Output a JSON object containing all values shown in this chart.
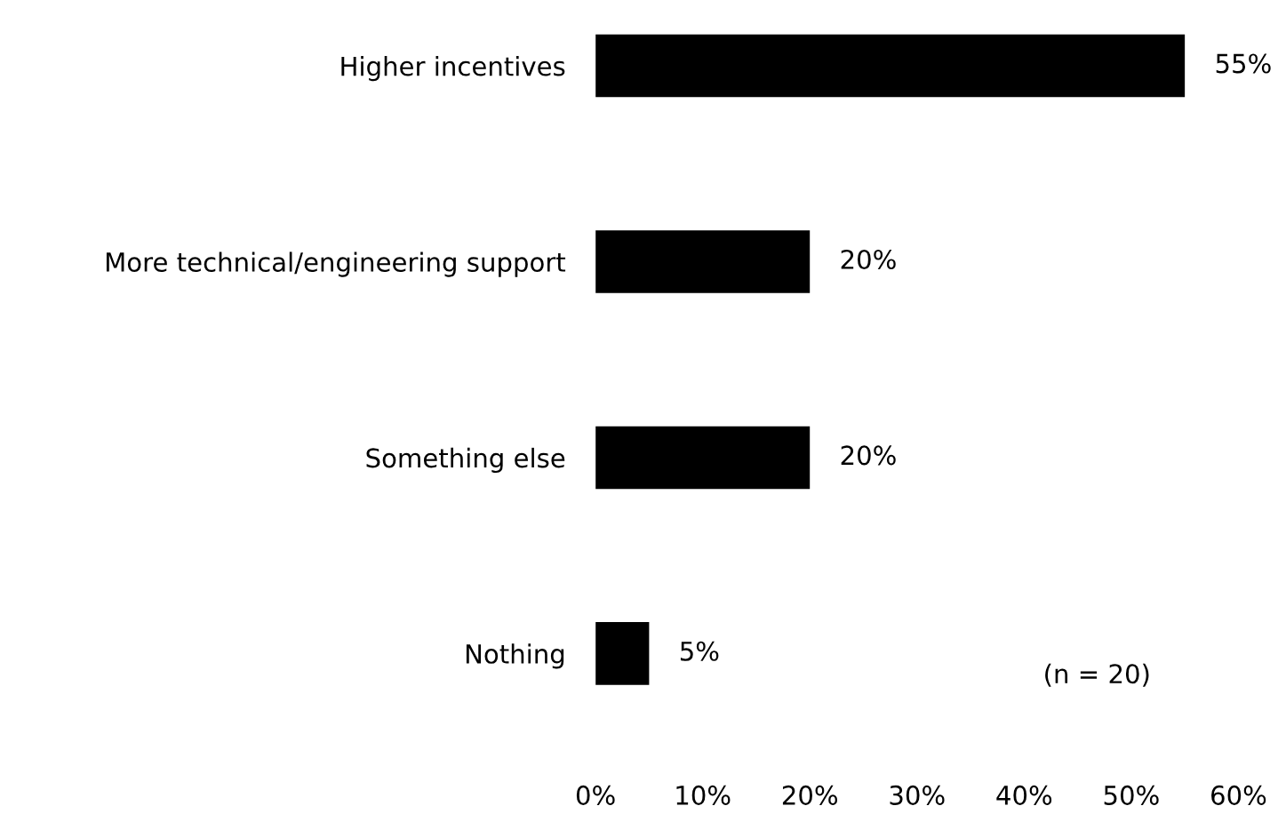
{
  "chart_data": {
    "type": "bar",
    "orientation": "horizontal",
    "categories": [
      "Higher incentives",
      "More technical/engineering support",
      "Something else",
      "Nothing"
    ],
    "values": [
      55,
      20,
      20,
      5
    ],
    "color": "#000000",
    "value_labels": [
      "55%",
      "20%",
      "20%",
      "5%"
    ],
    "xlim": [
      0,
      60
    ],
    "xticks": [
      {
        "value": 0,
        "label": "0%"
      },
      {
        "value": 10,
        "label": "10%"
      },
      {
        "value": 20,
        "label": "20%"
      },
      {
        "value": 30,
        "label": "30%"
      },
      {
        "value": 40,
        "label": "40%"
      },
      {
        "value": 50,
        "label": "50%"
      },
      {
        "value": 60,
        "label": "60%"
      }
    ],
    "annotations": [
      "(n = 20)"
    ],
    "grid": false,
    "legend": false
  }
}
